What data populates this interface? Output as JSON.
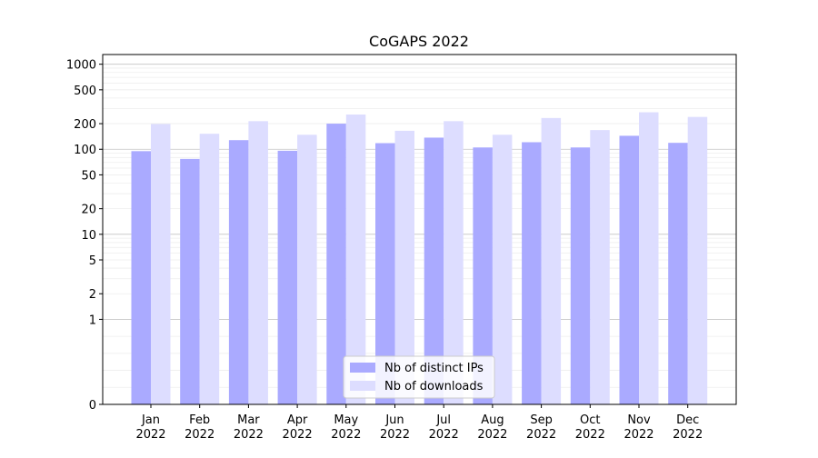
{
  "chart_data": {
    "type": "bar",
    "title": "CoGAPS 2022",
    "xlabel": "",
    "ylabel": "",
    "yscale": "symlog",
    "ylim": [
      0,
      1300
    ],
    "yticks": [
      {
        "value": 0,
        "label": "0"
      },
      {
        "value": 1,
        "label": "1"
      },
      {
        "value": 2,
        "label": "2"
      },
      {
        "value": 5,
        "label": "5"
      },
      {
        "value": 10,
        "label": "10"
      },
      {
        "value": 20,
        "label": "20"
      },
      {
        "value": 50,
        "label": "50"
      },
      {
        "value": 100,
        "label": "100"
      },
      {
        "value": 200,
        "label": "200"
      },
      {
        "value": 500,
        "label": "500"
      },
      {
        "value": 1000,
        "label": "1000"
      }
    ],
    "categories": [
      [
        "Jan",
        "2022"
      ],
      [
        "Feb",
        "2022"
      ],
      [
        "Mar",
        "2022"
      ],
      [
        "Apr",
        "2022"
      ],
      [
        "May",
        "2022"
      ],
      [
        "Jun",
        "2022"
      ],
      [
        "Jul",
        "2022"
      ],
      [
        "Aug",
        "2022"
      ],
      [
        "Sep",
        "2022"
      ],
      [
        "Oct",
        "2022"
      ],
      [
        "Nov",
        "2022"
      ],
      [
        "Dec",
        "2022"
      ]
    ],
    "series": [
      {
        "name": "Nb of distinct IPs",
        "color": "#aaaaff",
        "values": [
          95,
          77,
          128,
          96,
          200,
          118,
          137,
          105,
          121,
          105,
          144,
          119
        ]
      },
      {
        "name": "Nb of downloads",
        "color": "#ddddff",
        "values": [
          198,
          152,
          214,
          148,
          256,
          165,
          214,
          148,
          233,
          168,
          272,
          240
        ]
      }
    ],
    "grid": true,
    "legend_position": "bottom-center"
  }
}
